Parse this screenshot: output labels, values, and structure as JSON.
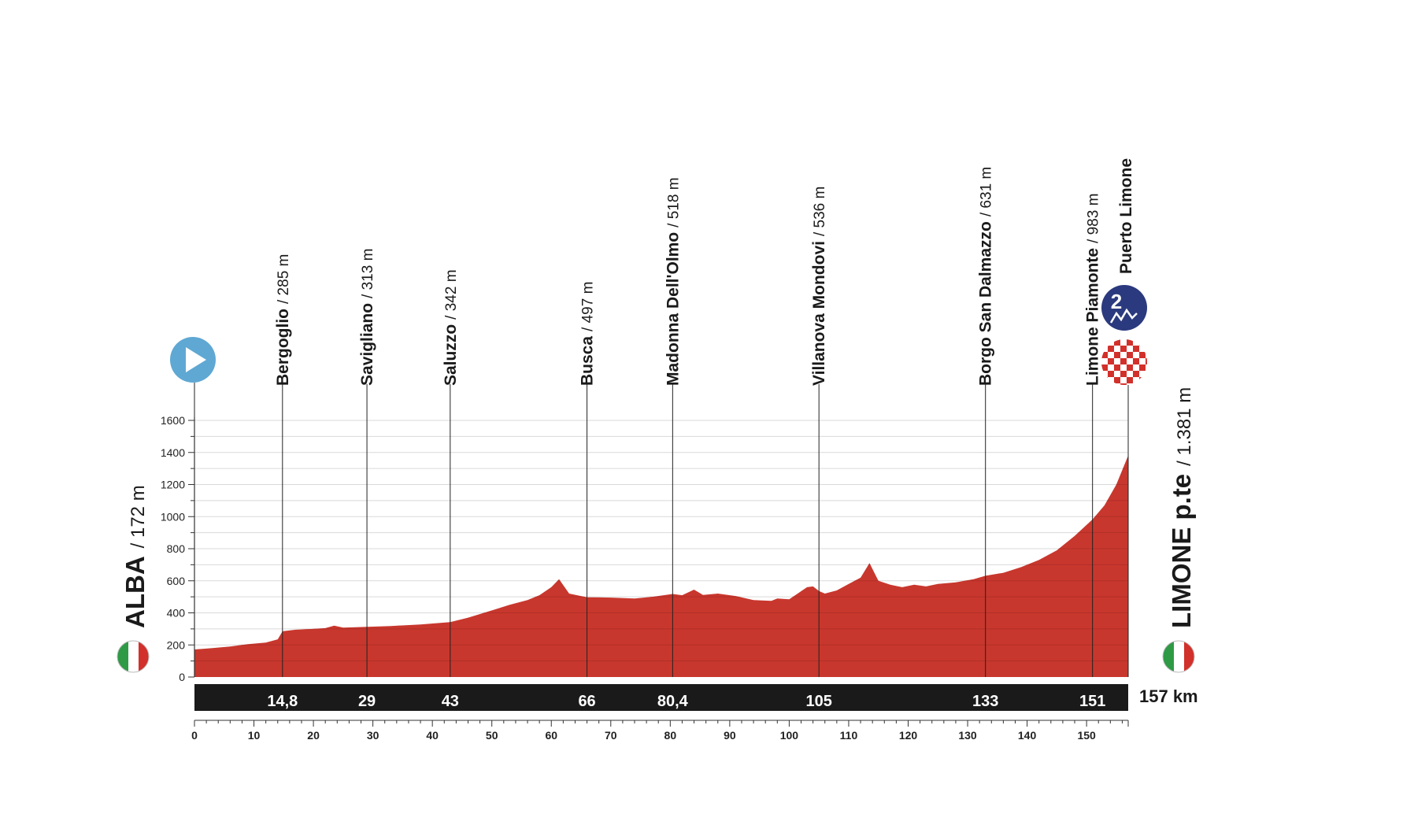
{
  "chart_data": {
    "type": "area",
    "title": "",
    "xlabel": "",
    "ylabel": "",
    "xlim": [
      0,
      157
    ],
    "ylim": [
      0,
      1600
    ],
    "xticks": [
      0,
      10,
      20,
      30,
      40,
      50,
      60,
      70,
      80,
      90,
      100,
      110,
      120,
      130,
      140,
      150
    ],
    "yticks": [
      0,
      200,
      400,
      600,
      800,
      1000,
      1200,
      1400,
      1600
    ],
    "grid": true,
    "total_distance_label": "157 km",
    "start": {
      "name": "ALBA",
      "altitude": "/ 172 m"
    },
    "finish": {
      "name": "LIMONE p.te",
      "altitude": "/ 1.381 m"
    },
    "colors": {
      "profile": "#c8372d",
      "band": "#1a1a1a",
      "start_icon": "#5fa8d3",
      "climb_badge": "#2b3a7e",
      "grid": "#b0302a"
    },
    "waypoints": [
      {
        "km": 14.8,
        "km_label": "14,8",
        "name": "Bergoglio",
        "altitude": "/ 285 m"
      },
      {
        "km": 29,
        "km_label": "29",
        "name": "Savigliano",
        "altitude": "/ 313 m"
      },
      {
        "km": 43,
        "km_label": "43",
        "name": "Saluzzo",
        "altitude": "/ 342 m"
      },
      {
        "km": 66,
        "km_label": "66",
        "name": "Busca",
        "altitude": "/ 497 m"
      },
      {
        "km": 80.4,
        "km_label": "80,4",
        "name": "Madonna Dell'Olmo",
        "altitude": "/ 518 m"
      },
      {
        "km": 105,
        "km_label": "105",
        "name": "Villanova Mondovi",
        "altitude": "/ 536 m"
      },
      {
        "km": 133,
        "km_label": "133",
        "name": "Borgo San Dalmazzo",
        "altitude": "/ 631 m"
      },
      {
        "km": 151,
        "km_label": "151",
        "name": "Limone Piamonte",
        "altitude": "/ 983 m"
      }
    ],
    "summit": {
      "km": 157,
      "name": "Puerto Limone",
      "category": "2"
    },
    "profile": [
      [
        0,
        172
      ],
      [
        3,
        180
      ],
      [
        6,
        190
      ],
      [
        9,
        205
      ],
      [
        12,
        215
      ],
      [
        14,
        235
      ],
      [
        14.8,
        285
      ],
      [
        17,
        295
      ],
      [
        20,
        300
      ],
      [
        22,
        305
      ],
      [
        23.5,
        320
      ],
      [
        25,
        308
      ],
      [
        29,
        313
      ],
      [
        33,
        318
      ],
      [
        38,
        328
      ],
      [
        43,
        342
      ],
      [
        46,
        370
      ],
      [
        50,
        415
      ],
      [
        53,
        450
      ],
      [
        56,
        480
      ],
      [
        58,
        510
      ],
      [
        60,
        560
      ],
      [
        61.3,
        610
      ],
      [
        63,
        520
      ],
      [
        66,
        497
      ],
      [
        70,
        495
      ],
      [
        74,
        490
      ],
      [
        77,
        500
      ],
      [
        80.4,
        518
      ],
      [
        82,
        510
      ],
      [
        84,
        545
      ],
      [
        85.5,
        512
      ],
      [
        88,
        520
      ],
      [
        91,
        505
      ],
      [
        94,
        480
      ],
      [
        97,
        475
      ],
      [
        98,
        490
      ],
      [
        100,
        485
      ],
      [
        101,
        510
      ],
      [
        103,
        560
      ],
      [
        104,
        565
      ],
      [
        105,
        536
      ],
      [
        106,
        520
      ],
      [
        108,
        540
      ],
      [
        110,
        580
      ],
      [
        112,
        620
      ],
      [
        113.5,
        710
      ],
      [
        115,
        600
      ],
      [
        117,
        575
      ],
      [
        119,
        560
      ],
      [
        121,
        575
      ],
      [
        123,
        565
      ],
      [
        125,
        580
      ],
      [
        128,
        590
      ],
      [
        131,
        610
      ],
      [
        133,
        631
      ],
      [
        136,
        650
      ],
      [
        139,
        685
      ],
      [
        142,
        730
      ],
      [
        145,
        790
      ],
      [
        148,
        880
      ],
      [
        151,
        983
      ],
      [
        153,
        1070
      ],
      [
        155,
        1200
      ],
      [
        157,
        1381
      ]
    ]
  }
}
